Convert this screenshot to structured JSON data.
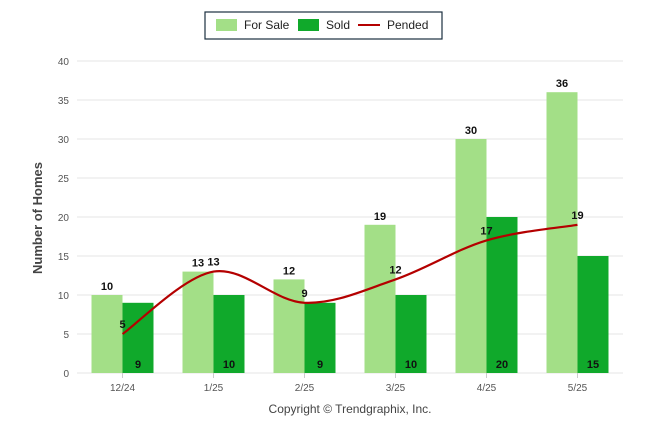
{
  "chart_data": {
    "type": "bar",
    "categories": [
      "12/24",
      "1/25",
      "2/25",
      "3/25",
      "4/25",
      "5/25"
    ],
    "series": [
      {
        "name": "For Sale",
        "type": "bar",
        "values": [
          10,
          13,
          12,
          19,
          30,
          36
        ],
        "color": "#a3df87"
      },
      {
        "name": "Sold",
        "type": "bar",
        "values": [
          9,
          10,
          9,
          10,
          20,
          15
        ],
        "color": "#10a92b"
      },
      {
        "name": "Pended",
        "type": "line",
        "values": [
          5,
          13,
          9,
          12,
          17,
          19
        ],
        "color": "#b40000"
      }
    ],
    "title": "",
    "xlabel": "",
    "ylabel": "Number of Homes",
    "ylim": [
      0,
      40
    ],
    "yticks": [
      0,
      5,
      10,
      15,
      20,
      25,
      30,
      35,
      40
    ],
    "grid": true,
    "legend_position": "top-center"
  },
  "footer": {
    "copyright": "Copyright © Trendgraphix, Inc."
  }
}
